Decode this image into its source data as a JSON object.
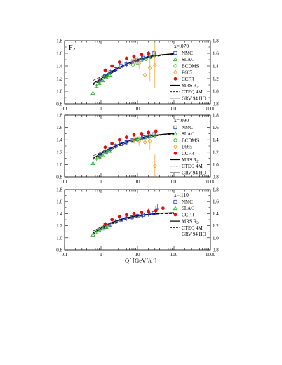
{
  "figure": {
    "ylabel": "F",
    "ylabel_sub": "2",
    "xlabel_main": "Q",
    "xlabel_exp": "2",
    "xlabel_unit_open": " [GeV",
    "xlabel_unit_exp1": "2",
    "xlabel_unit_mid": "/c",
    "xlabel_unit_exp2": "2",
    "xlabel_unit_close": "]"
  },
  "chart_data": [
    {
      "type": "scatter",
      "annotation": "x=.070",
      "xscale": "log",
      "xlim": [
        0.1,
        1000
      ],
      "ylim": [
        0.8,
        1.8
      ],
      "yticks": [
        "0.8",
        "1.0",
        "1.2",
        "1.4",
        "1.6",
        "1.8"
      ],
      "xticks": [
        "0.1",
        "1",
        "10",
        "100",
        "1000"
      ],
      "legend_position": "right",
      "series": [
        {
          "name": "NMC",
          "marker": "open-square",
          "color": "#2233cc",
          "x": [
            0.9,
            1.3,
            1.8,
            2.5,
            3.5,
            5.0,
            7.0,
            10,
            14,
            20,
            28
          ],
          "y": [
            1.17,
            1.24,
            1.3,
            1.35,
            1.4,
            1.43,
            1.47,
            1.5,
            1.53,
            1.58,
            1.6
          ],
          "err": [
            0.05,
            0.04,
            0.04,
            0.04,
            0.04,
            0.04,
            0.04,
            0.04,
            0.05,
            0.05,
            0.06
          ]
        },
        {
          "name": "SLAC",
          "marker": "open-triangle",
          "color": "#22aa22",
          "x": [
            0.6,
            0.75,
            0.9,
            1.1,
            1.4,
            1.7
          ],
          "y": [
            0.97,
            1.08,
            1.13,
            1.17,
            1.22,
            1.26
          ],
          "err": [
            0.02,
            0.02,
            0.02,
            0.02,
            0.02,
            0.02
          ]
        },
        {
          "name": "BCDMS",
          "marker": "open-circle",
          "color": "#22aa22",
          "x": [
            7.5,
            10,
            13,
            17,
            23,
            30
          ],
          "y": [
            1.42,
            1.45,
            1.49,
            1.51,
            1.54,
            1.57
          ],
          "err": [
            0.03,
            0.03,
            0.03,
            0.03,
            0.03,
            0.03
          ]
        },
        {
          "name": "E665",
          "marker": "open-diamond",
          "color": "#f0a020",
          "x": [
            8,
            11,
            16,
            22,
            30
          ],
          "y": [
            1.49,
            1.44,
            1.26,
            1.37,
            1.41
          ],
          "err": [
            0.06,
            0.09,
            0.12,
            0.22,
            0.36
          ]
        },
        {
          "name": "CCFR",
          "marker": "filled-circle",
          "color": "#dd1111",
          "x": [
            1.3,
            2.0,
            3.2,
            5.0,
            8.0,
            13,
            20
          ],
          "y": [
            1.33,
            1.4,
            1.46,
            1.52,
            1.55,
            1.58,
            1.6
          ],
          "err": [
            0.04,
            0.03,
            0.03,
            0.03,
            0.03,
            0.03,
            0.04
          ]
        },
        {
          "name": "MRS R",
          "name_sub": "2",
          "style": "solid",
          "x": [
            0.6,
            1,
            2,
            3,
            5,
            10,
            20,
            50,
            100
          ],
          "y": [
            1.12,
            1.2,
            1.31,
            1.37,
            1.43,
            1.5,
            1.55,
            1.58,
            1.59
          ]
        },
        {
          "name": "CTEQ 4M",
          "style": "dashed",
          "x": [
            0.6,
            1,
            2,
            3,
            5,
            10,
            20,
            50,
            100
          ],
          "y": [
            1.1,
            1.18,
            1.29,
            1.35,
            1.41,
            1.48,
            1.53,
            1.57,
            1.58
          ]
        },
        {
          "name": "GRV 94 HO",
          "style": "thin",
          "x": [
            0.6,
            1,
            2,
            3,
            5,
            10,
            20,
            50,
            100
          ],
          "y": [
            1.17,
            1.23,
            1.32,
            1.37,
            1.43,
            1.49,
            1.54,
            1.58,
            1.6
          ]
        }
      ]
    },
    {
      "type": "scatter",
      "annotation": "x=.090",
      "xscale": "log",
      "xlim": [
        0.1,
        1000
      ],
      "ylim": [
        0.8,
        1.8
      ],
      "yticks": [
        "0.8",
        "1.0",
        "1.2",
        "1.4",
        "1.6",
        "1.8"
      ],
      "xticks": [
        "0.1",
        "1",
        "10",
        "100",
        "1000"
      ],
      "legend_position": "right",
      "series": [
        {
          "name": "NMC",
          "marker": "open-square",
          "color": "#2233cc",
          "x": [
            0.9,
            1.3,
            1.8,
            2.5,
            3.5,
            5.0,
            7.0,
            10,
            14,
            20,
            28
          ],
          "y": [
            1.14,
            1.21,
            1.25,
            1.3,
            1.33,
            1.36,
            1.39,
            1.41,
            1.44,
            1.47,
            1.49
          ],
          "err": [
            0.05,
            0.04,
            0.04,
            0.04,
            0.04,
            0.04,
            0.04,
            0.04,
            0.05,
            0.05,
            0.06
          ]
        },
        {
          "name": "SLAC",
          "marker": "open-triangle",
          "color": "#22aa22",
          "x": [
            0.6,
            0.75,
            0.9,
            1.1,
            1.4,
            1.7
          ],
          "y": [
            1.02,
            1.08,
            1.12,
            1.15,
            1.19,
            1.22
          ],
          "err": [
            0.02,
            0.02,
            0.02,
            0.02,
            0.02,
            0.02
          ]
        },
        {
          "name": "BCDMS",
          "marker": "open-circle",
          "color": "#22aa22",
          "x": [
            7.5,
            10,
            13,
            17,
            23,
            30
          ],
          "y": [
            1.38,
            1.4,
            1.42,
            1.44,
            1.46,
            1.47
          ],
          "err": [
            0.03,
            0.03,
            0.03,
            0.03,
            0.03,
            0.03
          ]
        },
        {
          "name": "E665",
          "marker": "open-diamond",
          "color": "#f0a020",
          "x": [
            8,
            11,
            16,
            22,
            30
          ],
          "y": [
            1.4,
            1.38,
            1.36,
            1.38,
            0.98
          ],
          "err": [
            0.06,
            0.08,
            0.1,
            0.14,
            0.18
          ]
        },
        {
          "name": "CCFR",
          "marker": "filled-circle",
          "color": "#dd1111",
          "x": [
            1.3,
            2.0,
            3.2,
            5.0,
            8.0,
            13,
            20,
            32
          ],
          "y": [
            1.28,
            1.34,
            1.4,
            1.44,
            1.48,
            1.5,
            1.52,
            1.54
          ],
          "err": [
            0.04,
            0.03,
            0.03,
            0.03,
            0.03,
            0.03,
            0.04,
            0.05
          ]
        },
        {
          "name": "MRS R",
          "name_sub": "2",
          "style": "solid",
          "x": [
            0.6,
            1,
            2,
            3,
            5,
            10,
            20,
            50,
            100
          ],
          "y": [
            1.1,
            1.18,
            1.27,
            1.32,
            1.37,
            1.42,
            1.46,
            1.49,
            1.5
          ]
        },
        {
          "name": "CTEQ 4M",
          "style": "dashed",
          "x": [
            0.6,
            1,
            2,
            3,
            5,
            10,
            20,
            50,
            100
          ],
          "y": [
            1.08,
            1.16,
            1.25,
            1.3,
            1.35,
            1.4,
            1.44,
            1.48,
            1.49
          ]
        },
        {
          "name": "GRV 94 HO",
          "style": "thin",
          "x": [
            0.6,
            1,
            2,
            3,
            5,
            10,
            20,
            50,
            100
          ],
          "y": [
            1.14,
            1.2,
            1.28,
            1.33,
            1.37,
            1.42,
            1.46,
            1.49,
            1.51
          ]
        }
      ]
    },
    {
      "type": "scatter",
      "annotation": "x=.110",
      "xscale": "log",
      "xlim": [
        0.1,
        1000
      ],
      "ylim": [
        0.8,
        1.8
      ],
      "yticks": [
        "0.8",
        "1.0",
        "1.2",
        "1.4",
        "1.6",
        "1.8"
      ],
      "xticks": [
        "0.1",
        "1",
        "10",
        "100",
        "1000"
      ],
      "legend_position": "right",
      "series": [
        {
          "name": "NMC",
          "marker": "open-square",
          "color": "#2233cc",
          "x": [
            1.3,
            1.8,
            2.5,
            3.5,
            5.0,
            7.0,
            10,
            14,
            20,
            28,
            35
          ],
          "y": [
            1.18,
            1.22,
            1.27,
            1.3,
            1.32,
            1.34,
            1.36,
            1.38,
            1.4,
            1.41,
            1.5
          ],
          "err": [
            0.04,
            0.04,
            0.04,
            0.04,
            0.04,
            0.04,
            0.04,
            0.05,
            0.05,
            0.05,
            0.06
          ]
        },
        {
          "name": "SLAC",
          "marker": "open-triangle",
          "color": "#22aa22",
          "x": [
            0.6,
            0.75,
            0.9,
            1.1,
            1.4,
            1.7
          ],
          "y": [
            1.05,
            1.09,
            1.12,
            1.15,
            1.18,
            1.2
          ],
          "err": [
            0.02,
            0.02,
            0.02,
            0.02,
            0.02,
            0.02
          ]
        },
        {
          "name": "CCFR",
          "marker": "filled-circle",
          "color": "#dd1111",
          "x": [
            1.3,
            2.0,
            3.2,
            5.0,
            8.0,
            13,
            20,
            32,
            50
          ],
          "y": [
            1.23,
            1.3,
            1.35,
            1.38,
            1.4,
            1.42,
            1.44,
            1.45,
            1.49
          ],
          "err": [
            0.04,
            0.03,
            0.03,
            0.03,
            0.03,
            0.03,
            0.04,
            0.04,
            0.05
          ]
        },
        {
          "name": "MRS R",
          "name_sub": "2",
          "style": "solid",
          "x": [
            0.6,
            1,
            2,
            3,
            5,
            10,
            20,
            50,
            100
          ],
          "y": [
            1.08,
            1.16,
            1.25,
            1.29,
            1.33,
            1.37,
            1.39,
            1.41,
            1.41
          ]
        },
        {
          "name": "CTEQ 4M",
          "style": "dashed",
          "x": [
            0.6,
            1,
            2,
            3,
            5,
            10,
            20,
            50,
            100
          ],
          "y": [
            1.06,
            1.14,
            1.23,
            1.27,
            1.31,
            1.35,
            1.38,
            1.4,
            1.4
          ]
        },
        {
          "name": "GRV 94 HO",
          "style": "thin",
          "x": [
            0.6,
            1,
            2,
            3,
            5,
            10,
            20,
            50,
            100
          ],
          "y": [
            1.11,
            1.18,
            1.26,
            1.3,
            1.33,
            1.36,
            1.39,
            1.41,
            1.42
          ]
        }
      ]
    }
  ]
}
